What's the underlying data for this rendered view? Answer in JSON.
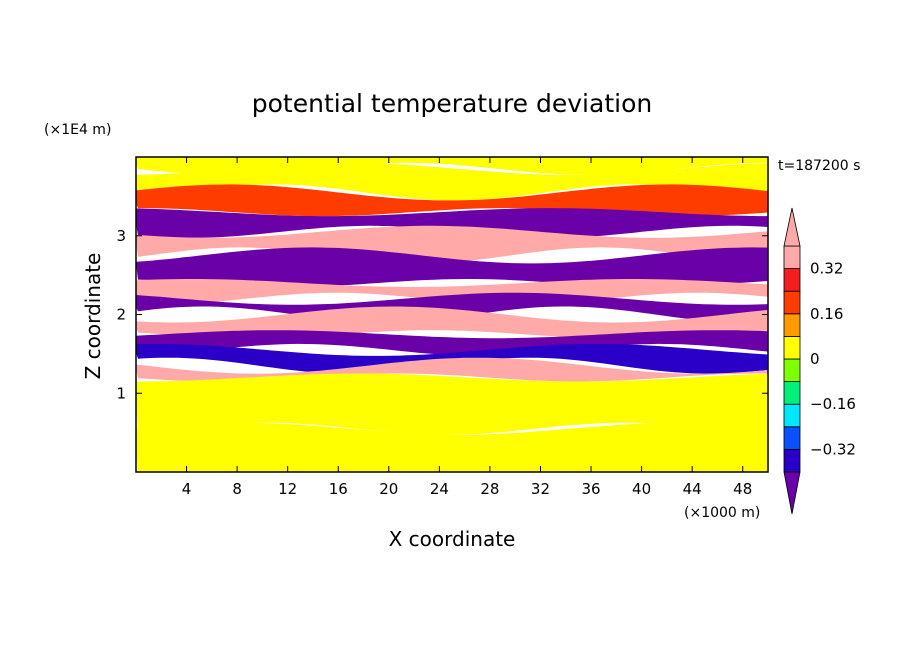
{
  "chart_data": {
    "type": "heatmap",
    "title": "potential temperature deviation",
    "xlabel": "X coordinate",
    "ylabel": "Z coordinate",
    "x_unit": "(×1000 m)",
    "y_unit": "(×1E4 m)",
    "time_label": "t=187200 s",
    "xlim": [
      0,
      50
    ],
    "ylim": [
      0,
      4
    ],
    "x_ticks": [
      4,
      8,
      12,
      16,
      20,
      24,
      28,
      32,
      36,
      40,
      44,
      48
    ],
    "y_ticks": [
      1,
      2,
      3
    ],
    "colorbar": {
      "labels": [
        {
          "value": 0.32,
          "text": "0.32"
        },
        {
          "value": 0.16,
          "text": "0.16"
        },
        {
          "value": 0,
          "text": "0"
        },
        {
          "value": -0.16,
          "text": "−0.16"
        },
        {
          "value": -0.32,
          "text": "−0.32"
        }
      ],
      "levels": [
        -0.4,
        -0.32,
        -0.24,
        -0.16,
        -0.08,
        0,
        0.08,
        0.16,
        0.24,
        0.32,
        0.4
      ],
      "colors": [
        "#6a00a8",
        "#2a00c8",
        "#0a50ff",
        "#00e8ff",
        "#00f07a",
        "#80ff00",
        "#ffff00",
        "#ff9a00",
        "#ff3c00",
        "#f41e1e",
        "#ffa9a9"
      ]
    },
    "bands": [
      {
        "z0": 3.85,
        "z1": 4.0,
        "value": 0.04
      },
      {
        "z0": 3.55,
        "z1": 3.85,
        "value": 0.06
      },
      {
        "z0": 3.3,
        "z1": 3.55,
        "value": 0.2
      },
      {
        "z0": 3.05,
        "z1": 3.3,
        "value": -0.42
      },
      {
        "z0": 2.75,
        "z1": 3.05,
        "value": 0.42
      },
      {
        "z0": 2.4,
        "z1": 2.75,
        "value": -0.42
      },
      {
        "z0": 2.2,
        "z1": 2.4,
        "value": 0.42
      },
      {
        "z0": 2.0,
        "z1": 2.2,
        "value": -0.42
      },
      {
        "z0": 1.75,
        "z1": 2.0,
        "value": 0.42
      },
      {
        "z0": 1.55,
        "z1": 1.75,
        "value": -0.42
      },
      {
        "z0": 1.35,
        "z1": 1.55,
        "value": -0.34
      },
      {
        "z0": 1.2,
        "z1": 1.35,
        "value": 0.42
      },
      {
        "z0": 0.55,
        "z1": 1.2,
        "value": 0.04
      },
      {
        "z0": 0.0,
        "z1": 0.55,
        "value": 0.0
      }
    ]
  }
}
